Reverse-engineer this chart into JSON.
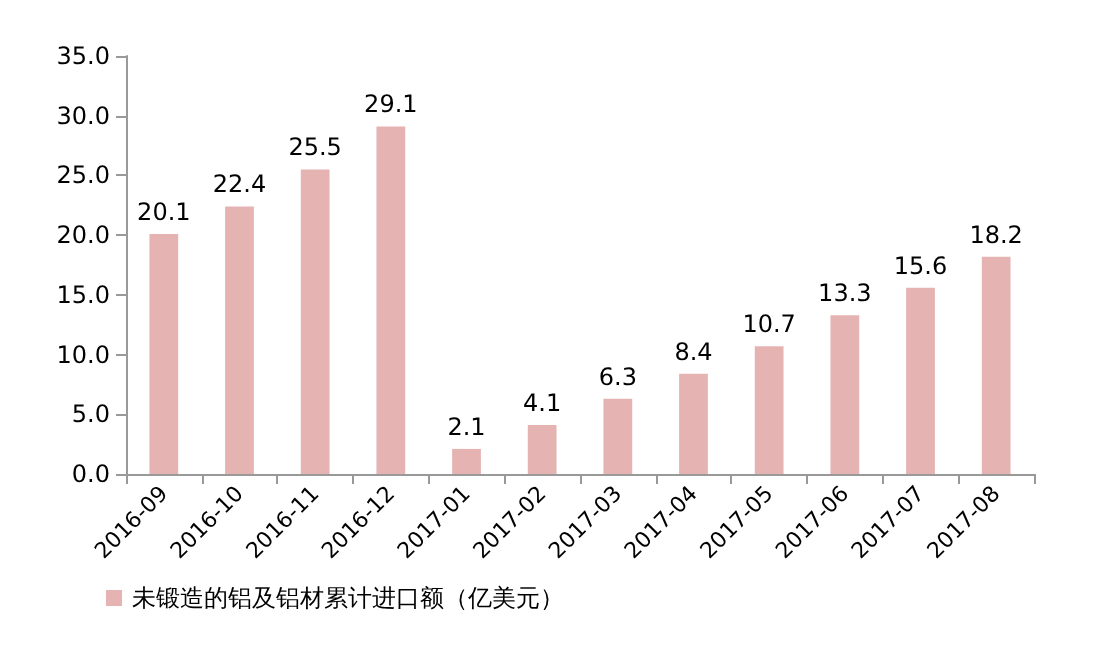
{
  "chart_data": {
    "type": "bar",
    "categories": [
      "2016-09",
      "2016-10",
      "2016-11",
      "2016-12",
      "2017-01",
      "2017-02",
      "2017-03",
      "2017-04",
      "2017-05",
      "2017-06",
      "2017-07",
      "2017-08"
    ],
    "series": [
      {
        "name": "未锻造的铝及铝材累计进口额（亿美元）",
        "color": "#e6b3b3",
        "values": [
          20.1,
          22.4,
          25.5,
          29.1,
          2.1,
          4.1,
          6.3,
          8.4,
          10.7,
          13.3,
          15.6,
          18.2
        ]
      }
    ],
    "ylim": [
      0,
      35
    ],
    "yticks": [
      {
        "value": 0,
        "label": "0.0"
      },
      {
        "value": 5,
        "label": "5.0"
      },
      {
        "value": 10,
        "label": "10.0"
      },
      {
        "value": 15,
        "label": "15.0"
      },
      {
        "value": 20,
        "label": "20.0"
      },
      {
        "value": 25,
        "label": "25.0"
      },
      {
        "value": 30,
        "label": "30.0"
      },
      {
        "value": 35,
        "label": "35.0"
      }
    ],
    "data_labels": true,
    "grid": false,
    "legend": "bottom left"
  }
}
